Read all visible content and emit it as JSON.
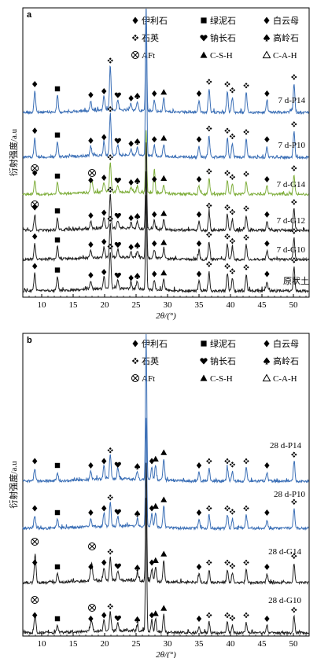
{
  "chart_data": [
    {
      "panel": "a",
      "type": "line",
      "xlabel": "2θ/(°)",
      "ylabel": "衍射强度/a.u",
      "xlim": [
        7,
        52.5
      ],
      "xticks": [
        10,
        15,
        20,
        25,
        30,
        35,
        40,
        45,
        50
      ],
      "legend": [
        {
          "symbol": "filled-diamond",
          "label": "伊利石"
        },
        {
          "symbol": "filled-square",
          "label": "绿泥石"
        },
        {
          "symbol": "filled-diamond",
          "label": "白云母"
        },
        {
          "symbol": "quatrefoil",
          "label": "石英"
        },
        {
          "symbol": "heart",
          "label": "钠长石"
        },
        {
          "symbol": "spade",
          "label": "高岭石"
        },
        {
          "symbol": "circle-x",
          "label": "AFt"
        },
        {
          "symbol": "filled-triangle",
          "label": "C-S-H"
        },
        {
          "symbol": "open-triangle",
          "label": "C-A-H"
        }
      ],
      "series": [
        {
          "name": "7 d-P14",
          "color": "#3b6fb6"
        },
        {
          "name": "7 d-P10",
          "color": "#3b6fb6"
        },
        {
          "name": "7 d-G14",
          "color": "#7fae3c"
        },
        {
          "name": "7 d-G12",
          "color": "#222222"
        },
        {
          "name": "7 d-G10",
          "color": "#222222"
        },
        {
          "name": "原状土",
          "color": "#222222"
        }
      ],
      "peaks": [
        8.9,
        12.5,
        17.8,
        19.9,
        20.9,
        22.1,
        24.2,
        25.2,
        26.6,
        27.9,
        29.4,
        35.0,
        36.6,
        39.5,
        40.3,
        42.5,
        45.8,
        50.1
      ]
    },
    {
      "panel": "b",
      "type": "line",
      "xlabel": "2θ/(°)",
      "ylabel": "衍射强度/a.u",
      "xlim": [
        7,
        52.5
      ],
      "xticks": [
        10,
        15,
        20,
        25,
        30,
        35,
        40,
        45,
        50
      ],
      "legend": [
        {
          "symbol": "filled-diamond",
          "label": "伊利石"
        },
        {
          "symbol": "filled-square",
          "label": "绿泥石"
        },
        {
          "symbol": "filled-diamond",
          "label": "白云母"
        },
        {
          "symbol": "quatrefoil",
          "label": "石英"
        },
        {
          "symbol": "heart",
          "label": "钠长石"
        },
        {
          "symbol": "spade",
          "label": "高岭石"
        },
        {
          "symbol": "circle-x",
          "label": "AFt"
        },
        {
          "symbol": "filled-triangle",
          "label": "C-S-H"
        },
        {
          "symbol": "open-triangle",
          "label": "C-A-H"
        }
      ],
      "series": [
        {
          "name": "28 d-P14",
          "color": "#3b6fb6"
        },
        {
          "name": "28 d-P10",
          "color": "#3b6fb6"
        },
        {
          "name": "28 d-G14",
          "color": "#222222"
        },
        {
          "name": "28 d-G10",
          "color": "#222222"
        }
      ],
      "peaks": [
        8.9,
        12.5,
        17.8,
        19.9,
        20.9,
        22.1,
        25.2,
        26.6,
        27.5,
        28.1,
        29.4,
        35.0,
        36.6,
        39.5,
        40.3,
        42.5,
        45.8,
        50.1
      ]
    }
  ],
  "panel_labels": [
    "a",
    "b"
  ]
}
